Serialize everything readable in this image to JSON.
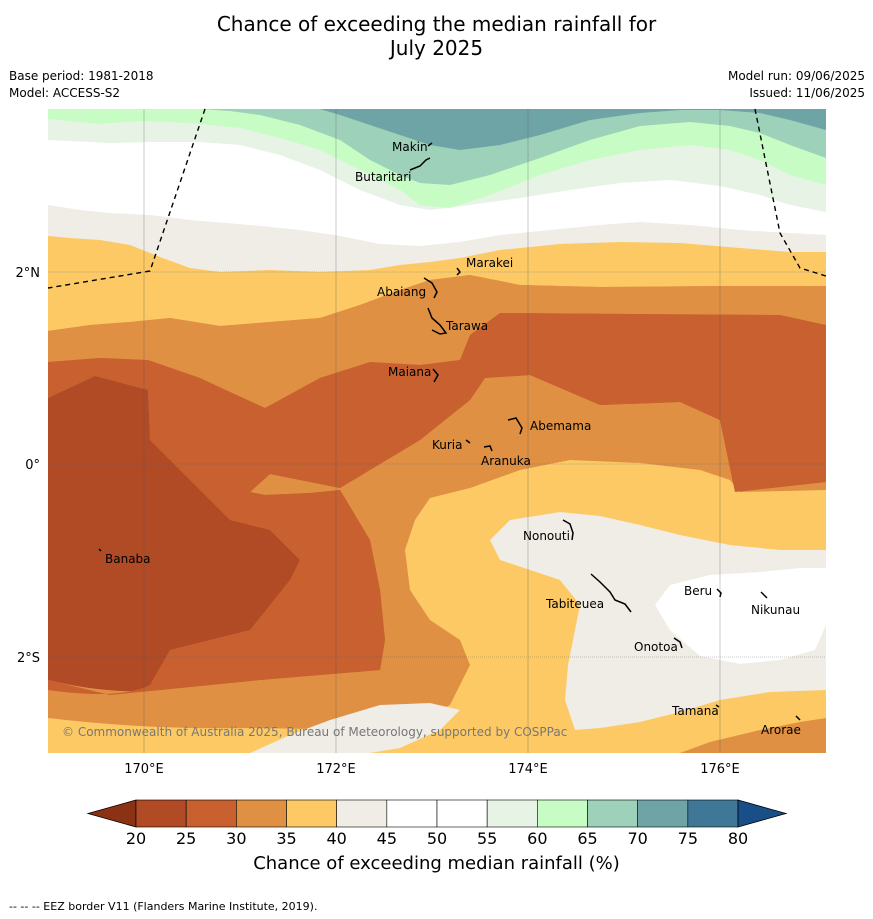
{
  "title_line1": "Chance of exceeding the median rainfall for",
  "title_line2": "July 2025",
  "meta_left": [
    "Base period: 1981-2018",
    "Model: ACCESS-S2"
  ],
  "meta_right": [
    "Model run: 09/06/2025",
    "Issued: 11/06/2025"
  ],
  "lat_labels": [
    "2°N",
    "0°",
    "2°S"
  ],
  "lon_labels": [
    "170°E",
    "172°E",
    "174°E",
    "176°E"
  ],
  "places": [
    "Makin",
    "Butaritari",
    "Marakei",
    "Abaiang",
    "Tarawa",
    "Maiana",
    "Abemama",
    "Kuria",
    "Aranuka",
    "Banaba",
    "Nonouti",
    "Beru",
    "Nikunau",
    "Tabiteuea",
    "Onotoa",
    "Tamana",
    "Arorae"
  ],
  "copyright": "© Commonwealth of Australia 2025, Bureau of Meteorology, supported by COSPPac",
  "colorbar": {
    "ticks": [
      "20",
      "25",
      "30",
      "35",
      "40",
      "45",
      "50",
      "55",
      "60",
      "65",
      "70",
      "75",
      "80"
    ],
    "colors": [
      "#b04b26",
      "#c8612f",
      "#df9043",
      "#fdc965",
      "#f0ece6",
      "#ffffff",
      "#ffffff",
      "#e7f3e5",
      "#c8fcc5",
      "#9dd1ba",
      "#6fa4a6",
      "#3e7896"
    ],
    "low_color": "#8c3214",
    "high_color": "#194f88",
    "title": "Chance of exceeding median rainfall (%)"
  },
  "footnote": "-- -- -- EEZ border V11 (Flanders Marine Institute, 2019)."
}
